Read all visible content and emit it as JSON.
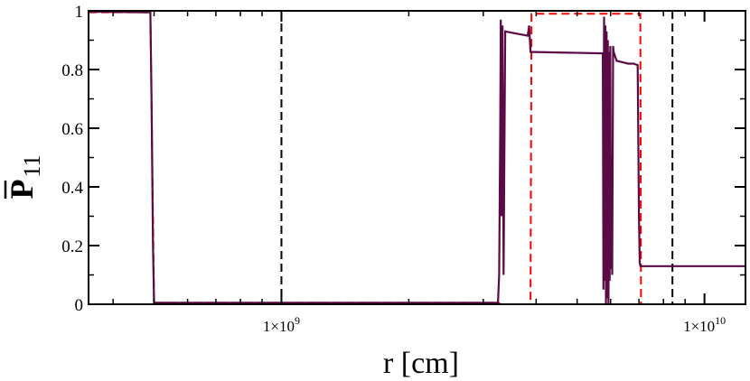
{
  "chart_data": {
    "type": "line",
    "title": "",
    "xlabel": "r [cm]",
    "ylabel_main": "P",
    "ylabel_sub": "11",
    "ylabel_overbar": true,
    "xscale": "log",
    "xlim": [
      350000000,
      12500000000
    ],
    "ylim": [
      0,
      1
    ],
    "grid": false,
    "legend": "none",
    "yticks": [
      {
        "value": 0,
        "label": "0"
      },
      {
        "value": 0.2,
        "label": "0.2"
      },
      {
        "value": 0.4,
        "label": "0.4"
      },
      {
        "value": 0.6,
        "label": "0.6"
      },
      {
        "value": 0.8,
        "label": "0.8"
      },
      {
        "value": 1,
        "label": "1"
      }
    ],
    "xticks_major": [
      {
        "value": 1000000000,
        "label_mantissa": "1×10",
        "label_exp": "9"
      },
      {
        "value": 10000000000,
        "label_mantissa": "1×10",
        "label_exp": "10"
      }
    ],
    "xticks_minor": [
      400000000,
      500000000,
      600000000,
      700000000,
      800000000,
      900000000,
      2000000000,
      3000000000,
      4000000000,
      5000000000,
      6000000000,
      7000000000,
      8000000000,
      9000000000
    ],
    "vlines": [
      {
        "x": 1000000000,
        "color": "#000000",
        "style": "dashed"
      },
      {
        "x": 8400000000,
        "color": "#000000",
        "style": "dashed"
      }
    ],
    "series": [
      {
        "color": "#ff0000",
        "style": "dashed",
        "x": [
          350000000,
          490000000,
          500000000,
          3250000000,
          3310000000,
          3880000000,
          3900000000,
          7050000000,
          7080000000,
          12500000000
        ],
        "y": [
          0.995,
          0.995,
          0.005,
          0.005,
          0.0,
          0.0,
          0.99,
          0.99,
          0.0,
          0.0
        ]
      },
      {
        "color": "#5a0a45",
        "style": "solid",
        "x": [
          350000000,
          490000000,
          493000000,
          497000000,
          500000000,
          3250000000,
          3270000000,
          3290000000,
          3300000000,
          3310000000,
          3330000000,
          3350000000,
          3380000000,
          3820000000,
          3850000000,
          3880000000,
          5750000000,
          5770000000,
          5790000000,
          5810000000,
          5830000000,
          5850000000,
          5870000000,
          5890000000,
          5910000000,
          5930000000,
          5950000000,
          5970000000,
          5990000000,
          6010000000,
          6030000000,
          6050000000,
          6080000000,
          6100000000,
          6200000000,
          6400000000,
          6600000000,
          6800000000,
          6950000000,
          7000000000,
          7030000000,
          7060000000,
          7100000000,
          12500000000
        ],
        "y": [
          0.997,
          0.995,
          0.7,
          0.2,
          0.005,
          0.005,
          0.1,
          0.6,
          0.97,
          0.3,
          0.95,
          0.1,
          0.93,
          0.915,
          0.95,
          0.86,
          0.855,
          0.05,
          0.98,
          0.08,
          0.95,
          0.0,
          0.93,
          0.02,
          0.9,
          0.0,
          0.86,
          0.08,
          0.88,
          0.12,
          0.5,
          0.1,
          0.88,
          0.86,
          0.83,
          0.825,
          0.82,
          0.82,
          0.815,
          0.3,
          0.14,
          0.13,
          0.13,
          0.13
        ]
      }
    ]
  }
}
